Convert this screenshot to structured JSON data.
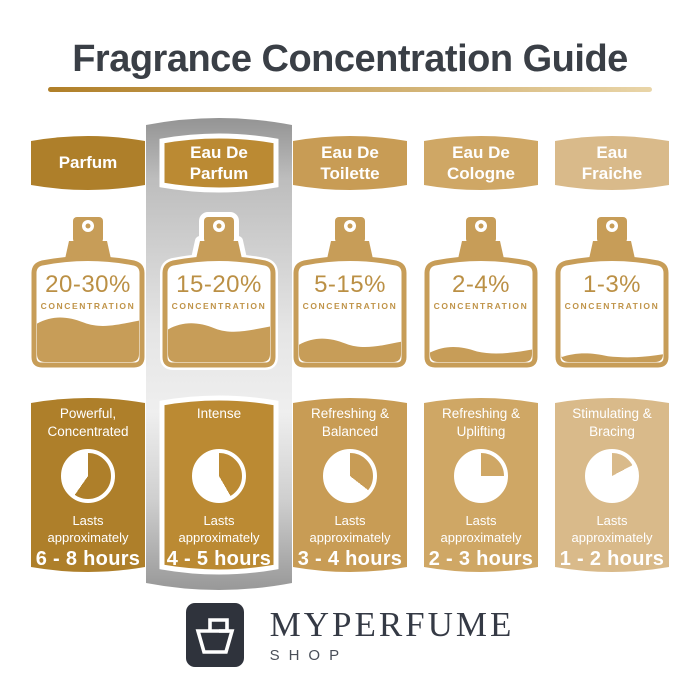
{
  "title": "Fragrance Concentration Guide",
  "underline": {
    "from": "#b07f28",
    "to": "#e9d5a8"
  },
  "bottle": {
    "color": "#c79d58",
    "text_color": "#bb9045"
  },
  "columns": [
    {
      "name": "Parfum",
      "concentration": "20-30%",
      "concentration_label": "CONCENTRATION",
      "character": "Powerful,\nConcentrated",
      "lasts": "Lasts\napproximately",
      "hours": "6 - 8 hours",
      "fill_level": 0.42,
      "clock_degrees": 215,
      "color": "#ae7f2a",
      "highlighted": false
    },
    {
      "name": "Eau De\nParfum",
      "concentration": "15-20%",
      "concentration_label": "CONCENTRATION",
      "character": "Intense",
      "lasts": "Lasts\napproximately",
      "hours": "4 - 5 hours",
      "fill_level": 0.36,
      "clock_degrees": 150,
      "color": "#bb8a33",
      "highlighted": true
    },
    {
      "name": "Eau De\nToilette",
      "concentration": "5-15%",
      "concentration_label": "CONCENTRATION",
      "character": "Refreshing &\nBalanced",
      "lasts": "Lasts\napproximately",
      "hours": "3 - 4 hours",
      "fill_level": 0.2,
      "clock_degrees": 128,
      "color": "#c89c55",
      "highlighted": false
    },
    {
      "name": "Eau De\nCologne",
      "concentration": "2-4%",
      "concentration_label": "CONCENTRATION",
      "character": "Refreshing &\nUplifting",
      "lasts": "Lasts\napproximately",
      "hours": "2 - 3 hours",
      "fill_level": 0.12,
      "clock_degrees": 90,
      "color": "#cfa765",
      "highlighted": false
    },
    {
      "name": "Eau\nFraiche",
      "concentration": "1-3%",
      "concentration_label": "CONCENTRATION",
      "character": "Stimulating &\nBracing",
      "lasts": "Lasts\napproximately",
      "hours": "1 - 2 hours",
      "fill_level": 0.07,
      "clock_degrees": 62,
      "color": "#d9ba8a",
      "highlighted": false
    }
  ],
  "footer": {
    "brand": "MYPERFUME",
    "sub": "SHOP"
  }
}
